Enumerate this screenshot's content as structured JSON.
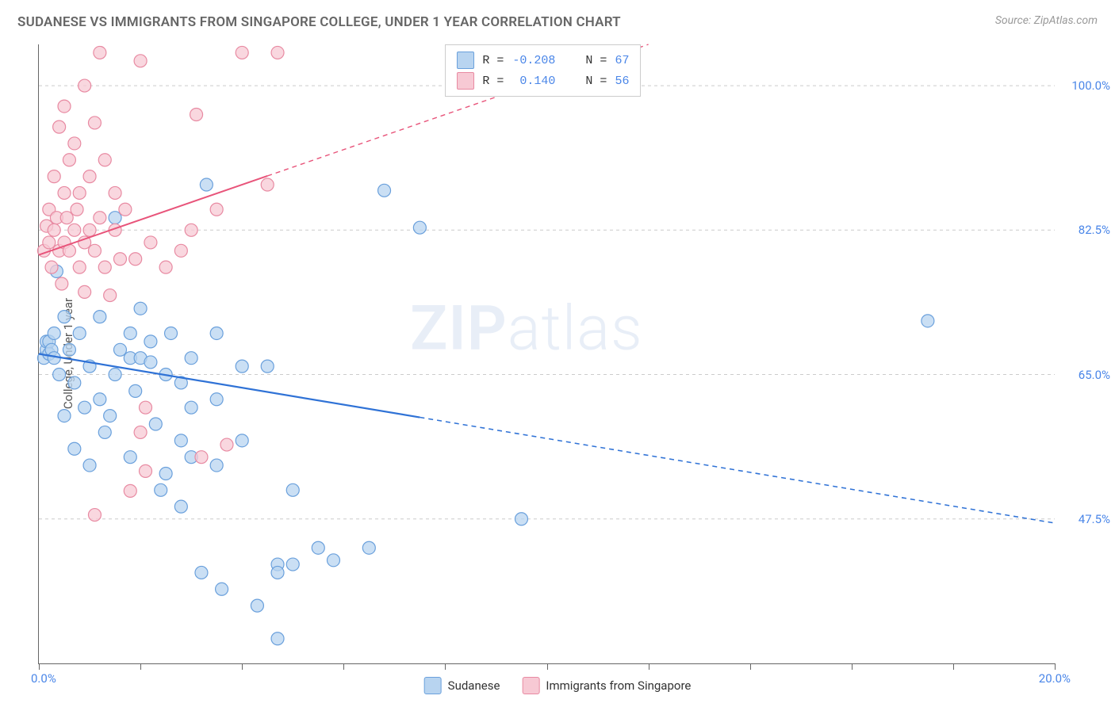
{
  "title": "SUDANESE VS IMMIGRANTS FROM SINGAPORE COLLEGE, UNDER 1 YEAR CORRELATION CHART",
  "source": "Source: ZipAtlas.com",
  "ylabel": "College, Under 1 year",
  "watermark_zip": "ZIP",
  "watermark_atlas": "atlas",
  "chart": {
    "type": "scatter",
    "background_color": "#ffffff",
    "grid_color": "#cccccc",
    "axis_color": "#666666",
    "xlim": [
      0,
      20
    ],
    "ylim": [
      30,
      105
    ],
    "xticks": [
      0,
      2,
      4,
      6,
      8,
      10,
      12,
      14,
      16,
      18,
      20
    ],
    "yticks": [
      47.5,
      65.0,
      82.5,
      100.0
    ],
    "xlabel_min": "0.0%",
    "xlabel_max": "20.0%",
    "ytick_labels": [
      "47.5%",
      "65.0%",
      "82.5%",
      "100.0%"
    ],
    "series": [
      {
        "name": "Sudanese",
        "color_fill": "#b8d4f0",
        "color_stroke": "#6aa0dc",
        "marker_radius": 8,
        "marker_opacity": 0.75,
        "trend": {
          "x1": 0,
          "y1": 67.5,
          "x2": 20,
          "y2": 47.0,
          "solid_until_x": 7.5,
          "color": "#2f72d6",
          "width": 2.2
        },
        "stats": {
          "R": "-0.208",
          "N": "67"
        },
        "points": [
          [
            0.1,
            67
          ],
          [
            0.15,
            68
          ],
          [
            0.15,
            69
          ],
          [
            0.2,
            67.5
          ],
          [
            0.2,
            69
          ],
          [
            0.25,
            68
          ],
          [
            0.3,
            70
          ],
          [
            0.3,
            67
          ],
          [
            0.35,
            77.5
          ],
          [
            0.4,
            65
          ],
          [
            0.5,
            72
          ],
          [
            0.5,
            60
          ],
          [
            0.6,
            68
          ],
          [
            0.7,
            64
          ],
          [
            0.7,
            56
          ],
          [
            0.8,
            70
          ],
          [
            0.9,
            61
          ],
          [
            1.0,
            66
          ],
          [
            1.0,
            54
          ],
          [
            1.2,
            72
          ],
          [
            1.2,
            62
          ],
          [
            1.3,
            58
          ],
          [
            1.4,
            60
          ],
          [
            1.5,
            65
          ],
          [
            1.5,
            84
          ],
          [
            1.6,
            68
          ],
          [
            1.8,
            67
          ],
          [
            1.8,
            70
          ],
          [
            1.9,
            63
          ],
          [
            1.8,
            55
          ],
          [
            2.0,
            67
          ],
          [
            2.0,
            73
          ],
          [
            2.2,
            66.5
          ],
          [
            2.2,
            69
          ],
          [
            2.3,
            59
          ],
          [
            2.4,
            51
          ],
          [
            2.5,
            53
          ],
          [
            2.5,
            65
          ],
          [
            2.6,
            70
          ],
          [
            2.8,
            64
          ],
          [
            2.8,
            57
          ],
          [
            2.8,
            49
          ],
          [
            3.0,
            67
          ],
          [
            3.0,
            61
          ],
          [
            3.0,
            55
          ],
          [
            3.2,
            41
          ],
          [
            3.3,
            88
          ],
          [
            3.5,
            70
          ],
          [
            3.5,
            62
          ],
          [
            3.5,
            54
          ],
          [
            3.6,
            39
          ],
          [
            4.0,
            66
          ],
          [
            4.0,
            57
          ],
          [
            4.3,
            37
          ],
          [
            4.5,
            66
          ],
          [
            4.7,
            42
          ],
          [
            4.7,
            41
          ],
          [
            4.7,
            33
          ],
          [
            5.0,
            42
          ],
          [
            5.0,
            51
          ],
          [
            5.5,
            44
          ],
          [
            5.8,
            42.5
          ],
          [
            6.5,
            44
          ],
          [
            6.8,
            87.3
          ],
          [
            7.5,
            82.8
          ],
          [
            9.5,
            47.5
          ],
          [
            17.5,
            71.5
          ]
        ]
      },
      {
        "name": "Immigrants from Singapore",
        "color_fill": "#f7c9d4",
        "color_stroke": "#e88aa2",
        "marker_radius": 8,
        "marker_opacity": 0.75,
        "trend": {
          "x1": 0,
          "y1": 79.5,
          "x2": 12,
          "y2": 105,
          "solid_until_x": 4.5,
          "color": "#e8547a",
          "width": 2
        },
        "stats": {
          "R": "0.140",
          "N": "56"
        },
        "points": [
          [
            0.1,
            80
          ],
          [
            0.15,
            83
          ],
          [
            0.2,
            81
          ],
          [
            0.2,
            85
          ],
          [
            0.25,
            78
          ],
          [
            0.3,
            82.5
          ],
          [
            0.3,
            89
          ],
          [
            0.35,
            84
          ],
          [
            0.4,
            80
          ],
          [
            0.4,
            95
          ],
          [
            0.45,
            76
          ],
          [
            0.5,
            81
          ],
          [
            0.5,
            87
          ],
          [
            0.5,
            97.5
          ],
          [
            0.55,
            84
          ],
          [
            0.6,
            80
          ],
          [
            0.6,
            91
          ],
          [
            0.7,
            82.5
          ],
          [
            0.7,
            93
          ],
          [
            0.75,
            85
          ],
          [
            0.8,
            78
          ],
          [
            0.8,
            87
          ],
          [
            0.9,
            81
          ],
          [
            0.9,
            100
          ],
          [
            0.9,
            75
          ],
          [
            1.0,
            82.5
          ],
          [
            1.0,
            89
          ],
          [
            1.1,
            95.5
          ],
          [
            1.1,
            80
          ],
          [
            1.2,
            84
          ],
          [
            1.2,
            104
          ],
          [
            1.1,
            48
          ],
          [
            1.3,
            78
          ],
          [
            1.3,
            91
          ],
          [
            1.4,
            74.6
          ],
          [
            1.5,
            82.5
          ],
          [
            1.5,
            87
          ],
          [
            1.6,
            79
          ],
          [
            1.7,
            85
          ],
          [
            1.8,
            50.9
          ],
          [
            1.9,
            79
          ],
          [
            2.0,
            103
          ],
          [
            2.0,
            58
          ],
          [
            2.1,
            61
          ],
          [
            2.2,
            81
          ],
          [
            2.1,
            53.3
          ],
          [
            2.5,
            78
          ],
          [
            2.8,
            80
          ],
          [
            3.0,
            82.5
          ],
          [
            3.1,
            96.5
          ],
          [
            3.2,
            55
          ],
          [
            3.5,
            85
          ],
          [
            3.7,
            56.5
          ],
          [
            4.0,
            104
          ],
          [
            4.5,
            88
          ],
          [
            4.7,
            104
          ]
        ]
      }
    ]
  },
  "legend_bottom": [
    {
      "label": "Sudanese",
      "fill": "#b8d4f0",
      "stroke": "#6aa0dc"
    },
    {
      "label": "Immigrants from Singapore",
      "fill": "#f7c9d4",
      "stroke": "#e88aa2"
    }
  ],
  "legend_top": {
    "r_label": "R =",
    "n_label": "N ="
  }
}
